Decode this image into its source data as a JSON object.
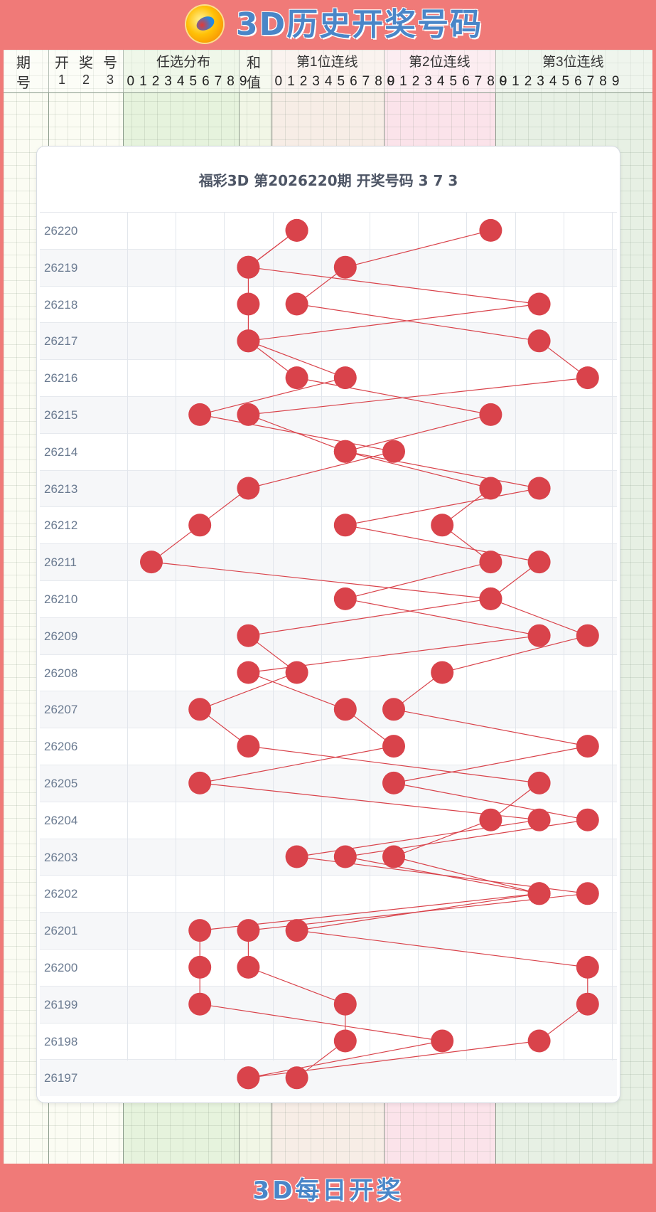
{
  "header": {
    "title": "3D历史开奖号码",
    "logo_icon": "rocket-logo-icon"
  },
  "table_header": {
    "issue": [
      "期",
      "号"
    ],
    "draw": {
      "labels": [
        "开",
        "奖",
        "号"
      ],
      "positions": [
        "1",
        "2",
        "3"
      ]
    },
    "any_dist": "任选分布",
    "sum": [
      "和",
      "值"
    ],
    "pos1": "第1位连线",
    "pos2": "第2位连线",
    "pos3": "第3位连线",
    "digits": [
      "0",
      "1",
      "2",
      "3",
      "4",
      "5",
      "6",
      "7",
      "8",
      "9"
    ]
  },
  "card": {
    "title": "福彩3D 第2026220期  开奖号码 3 7 3"
  },
  "colors": {
    "accent": "#f07a78",
    "dot": "#d9434b",
    "line": "#d9434b",
    "title_blue": "#4a86c8"
  },
  "chart_data": {
    "type": "scatter",
    "rows": [
      {
        "issue": "26220",
        "values": [
          3,
          7,
          3
        ]
      },
      {
        "issue": "26219",
        "values": [
          2,
          4,
          2
        ]
      },
      {
        "issue": "26218",
        "values": [
          2,
          3,
          8
        ]
      },
      {
        "issue": "26217",
        "values": [
          2,
          8,
          2
        ]
      },
      {
        "issue": "26216",
        "values": [
          4,
          9,
          3
        ]
      },
      {
        "issue": "26215",
        "values": [
          1,
          2,
          7
        ]
      },
      {
        "issue": "26214",
        "values": [
          5,
          4,
          4
        ]
      },
      {
        "issue": "26213",
        "values": [
          2,
          7,
          8
        ]
      },
      {
        "issue": "26212",
        "values": [
          1,
          6,
          4
        ]
      },
      {
        "issue": "26211",
        "values": [
          0,
          7,
          8
        ]
      },
      {
        "issue": "26210",
        "values": [
          7,
          4,
          7
        ]
      },
      {
        "issue": "26209",
        "values": [
          2,
          8,
          9
        ]
      },
      {
        "issue": "26208",
        "values": [
          3,
          2,
          6
        ]
      },
      {
        "issue": "26207",
        "values": [
          1,
          4,
          5
        ]
      },
      {
        "issue": "26206",
        "values": [
          2,
          5,
          9
        ]
      },
      {
        "issue": "26205",
        "values": [
          8,
          1,
          5
        ]
      },
      {
        "issue": "26204",
        "values": [
          7,
          8,
          9
        ]
      },
      {
        "issue": "26203",
        "values": [
          5,
          3,
          4
        ]
      },
      {
        "issue": "26202",
        "values": [
          8,
          9,
          8
        ]
      },
      {
        "issue": "26201",
        "values": [
          1,
          2,
          3
        ]
      },
      {
        "issue": "26200",
        "values": [
          1,
          2,
          9
        ]
      },
      {
        "issue": "26199",
        "values": [
          1,
          4,
          9
        ]
      },
      {
        "issue": "26198",
        "values": [
          6,
          4,
          8
        ]
      },
      {
        "issue": "26197",
        "values": [
          2,
          3,
          2
        ]
      }
    ],
    "x_range": [
      0,
      9
    ],
    "title": "福彩3D 第2026220期  开奖号码 3 7 3"
  },
  "footer": {
    "title": "3D每日开奖"
  }
}
